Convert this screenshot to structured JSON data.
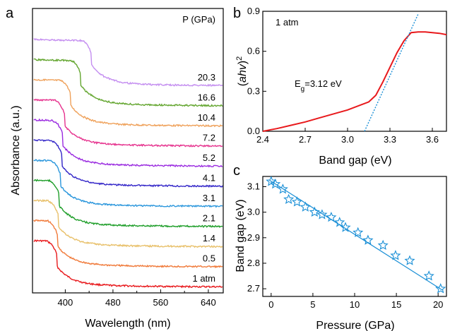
{
  "chart_data": [
    {
      "panel": "a",
      "type": "line",
      "xlabel": "Wavelength (nm)",
      "ylabel": "Absorbance (a.u.)",
      "legend_title": "P (GPa)",
      "xlim": [
        345,
        665
      ],
      "xticks": [
        "400",
        "480",
        "560",
        "640"
      ],
      "yticks": "none",
      "series": [
        {
          "name": "1 atm",
          "color": "#e8191c",
          "edge": 380,
          "offset": 0.0
        },
        {
          "name": "0.5",
          "color": "#f07a3a",
          "edge": 381,
          "offset": 1.0
        },
        {
          "name": "1.4",
          "color": "#e8c06a",
          "edge": 382,
          "offset": 2.0
        },
        {
          "name": "2.1",
          "color": "#1f9e2a",
          "edge": 384,
          "offset": 3.0
        },
        {
          "name": "3.1",
          "color": "#2a96dc",
          "edge": 386,
          "offset": 4.0
        },
        {
          "name": "4.1",
          "color": "#3326c8",
          "edge": 388,
          "offset": 5.0
        },
        {
          "name": "5.2",
          "color": "#9a2be0",
          "edge": 390,
          "offset": 6.0
        },
        {
          "name": "7.2",
          "color": "#e6338e",
          "edge": 393,
          "offset": 7.0
        },
        {
          "name": "10.4",
          "color": "#efa15a",
          "edge": 403,
          "offset": 8.0
        },
        {
          "name": "16.6",
          "color": "#64a630",
          "edge": 420,
          "offset": 9.0
        },
        {
          "name": "20.3",
          "color": "#c48ef0",
          "edge": 438,
          "offset": 10.0
        }
      ]
    },
    {
      "panel": "b",
      "type": "line",
      "xlabel": "Band gap (eV)",
      "ylabel": "(ahv)2",
      "annotation_top": "1 atm",
      "annotation_eg": "Eg=3.12 eV",
      "xlim": [
        2.4,
        3.7
      ],
      "ylim": [
        0.0,
        0.9
      ],
      "xticks": [
        "2.4",
        "2.7",
        "3.0",
        "3.3",
        "3.6"
      ],
      "yticks": [
        "0.0",
        "0.3",
        "0.6",
        "0.9"
      ],
      "series": [
        {
          "name": "spectrum",
          "color": "#e8191c",
          "x": [
            2.4,
            2.5,
            2.6,
            2.7,
            2.8,
            2.9,
            3.0,
            3.1,
            3.15,
            3.2,
            3.25,
            3.3,
            3.35,
            3.4,
            3.45,
            3.5,
            3.55,
            3.6,
            3.65,
            3.7
          ],
          "y": [
            0.0,
            0.02,
            0.045,
            0.07,
            0.1,
            0.13,
            0.16,
            0.2,
            0.22,
            0.27,
            0.37,
            0.48,
            0.59,
            0.68,
            0.74,
            0.745,
            0.745,
            0.74,
            0.735,
            0.725
          ]
        },
        {
          "name": "fit",
          "color": "#1a8fd6",
          "style": "dotted",
          "x": [
            3.12,
            3.5
          ],
          "y": [
            0.0,
            0.88
          ]
        }
      ]
    },
    {
      "panel": "c",
      "type": "scatter",
      "xlabel": "Pressure (GPa)",
      "ylabel": "Band gap (eV)",
      "xlim": [
        -1,
        21
      ],
      "ylim": [
        2.67,
        3.14
      ],
      "xticks": [
        "0",
        "5",
        "10",
        "15",
        "20"
      ],
      "yticks": [
        "2.7",
        "2.8",
        "2.9",
        "3.0",
        "3.1"
      ],
      "series": [
        {
          "name": "data",
          "color": "#1a8fd6",
          "x": [
            0,
            0.5,
            1.4,
            2.1,
            3.1,
            4.1,
            5.2,
            6.1,
            7.2,
            8.2,
            8.9,
            10.4,
            11.6,
            13.4,
            14.9,
            16.6,
            18.9,
            20.3
          ],
          "y": [
            3.12,
            3.11,
            3.09,
            3.05,
            3.04,
            3.02,
            3.0,
            2.99,
            2.98,
            2.96,
            2.94,
            2.92,
            2.89,
            2.87,
            2.83,
            2.81,
            2.75,
            2.7
          ]
        },
        {
          "name": "fit",
          "color": "#1a8fd6",
          "x": [
            -0.2,
            20.5
          ],
          "y": [
            3.125,
            2.695
          ]
        }
      ]
    }
  ]
}
